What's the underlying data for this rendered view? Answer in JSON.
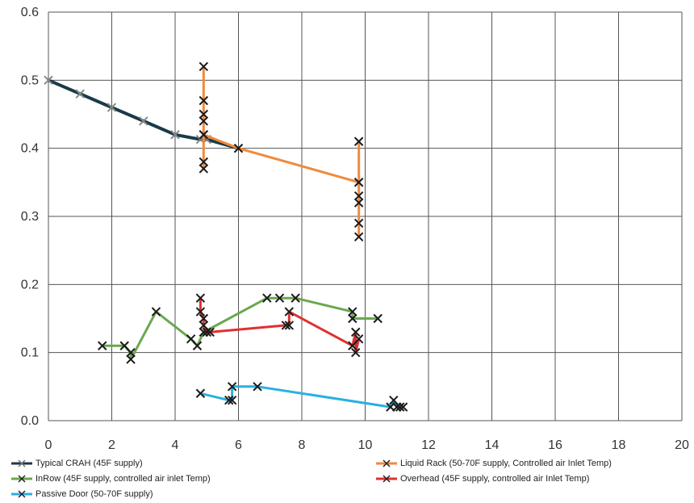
{
  "chart_data": {
    "type": "line",
    "title": "",
    "xlabel": "",
    "ylabel": "",
    "xlim": [
      0,
      20
    ],
    "ylim": [
      0,
      0.6
    ],
    "x_ticks": [
      "0",
      "2",
      "4",
      "6",
      "8",
      "10",
      "12",
      "14",
      "16",
      "18",
      "20"
    ],
    "y_ticks": [
      "0.0",
      "0.1",
      "0.2",
      "0.3",
      "0.4",
      "0.5",
      "0.6"
    ],
    "grid": true,
    "legend_position": "bottom",
    "series": [
      {
        "name": "Typical CRAH (45F supply)",
        "color": "#1a3a4a",
        "points": [
          [
            0,
            0.5
          ],
          [
            1,
            0.48
          ],
          [
            2,
            0.46
          ],
          [
            3,
            0.44
          ],
          [
            4,
            0.42
          ],
          [
            4.8,
            0.413
          ],
          [
            5,
            0.413
          ],
          [
            6,
            0.4
          ]
        ]
      },
      {
        "name": "Liquid Rack (50-70F supply, Controlled air Inlet Temp)",
        "color": "#f08a3c",
        "points": [
          [
            4.9,
            0.52
          ],
          [
            4.9,
            0.47
          ],
          [
            4.9,
            0.45
          ],
          [
            4.9,
            0.44
          ],
          [
            4.9,
            0.42
          ],
          [
            4.9,
            0.38
          ],
          [
            4.9,
            0.37
          ],
          [
            4.9,
            0.42
          ],
          [
            6,
            0.4
          ],
          [
            9.8,
            0.35
          ],
          [
            9.8,
            0.41
          ],
          [
            9.8,
            0.35
          ],
          [
            9.8,
            0.33
          ],
          [
            9.8,
            0.32
          ],
          [
            9.8,
            0.29
          ],
          [
            9.8,
            0.27
          ]
        ]
      },
      {
        "name": "InRow (45F supply, controlled air inlet Temp)",
        "color": "#6aa84f",
        "points": [
          [
            1.7,
            0.11
          ],
          [
            2.4,
            0.11
          ],
          [
            2.6,
            0.1
          ],
          [
            2.6,
            0.09
          ],
          [
            3.4,
            0.16
          ],
          [
            4.5,
            0.12
          ],
          [
            4.7,
            0.11
          ],
          [
            4.9,
            0.13
          ],
          [
            6.9,
            0.18
          ],
          [
            7.3,
            0.18
          ],
          [
            7.8,
            0.18
          ],
          [
            9.6,
            0.16
          ],
          [
            9.6,
            0.15
          ],
          [
            10.4,
            0.15
          ]
        ]
      },
      {
        "name": "Overhead (45F supply, controlled air Inlet Temp)",
        "color": "#e03030",
        "points": [
          [
            4.8,
            0.18
          ],
          [
            4.8,
            0.16
          ],
          [
            4.9,
            0.15
          ],
          [
            4.9,
            0.14
          ],
          [
            5,
            0.13
          ],
          [
            5.1,
            0.13
          ],
          [
            7.5,
            0.14
          ],
          [
            7.6,
            0.14
          ],
          [
            7.6,
            0.16
          ],
          [
            9.6,
            0.11
          ],
          [
            9.7,
            0.13
          ],
          [
            9.7,
            0.1
          ],
          [
            9.8,
            0.12
          ]
        ]
      },
      {
        "name": "Passive Door (50-70F supply)",
        "color": "#2ab0e0",
        "points": [
          [
            4.8,
            0.04
          ],
          [
            5.7,
            0.03
          ],
          [
            5.8,
            0.03
          ],
          [
            5.8,
            0.05
          ],
          [
            6.6,
            0.05
          ],
          [
            10.8,
            0.02
          ],
          [
            10.9,
            0.03
          ],
          [
            11,
            0.02
          ],
          [
            11.1,
            0.02
          ],
          [
            11.2,
            0.02
          ]
        ]
      }
    ]
  }
}
